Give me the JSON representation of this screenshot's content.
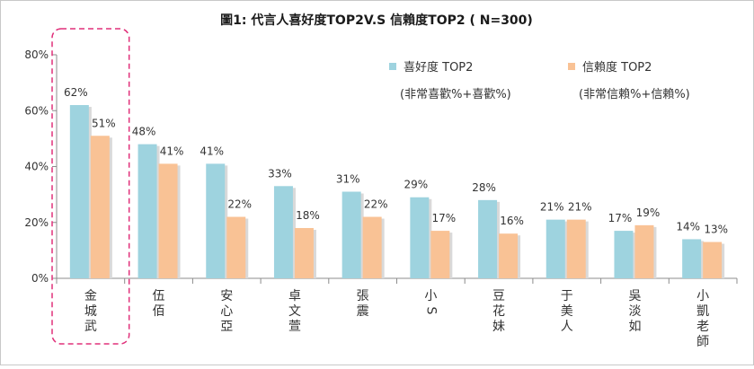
{
  "chart_data": {
    "type": "bar",
    "title": "圖1: 代言人喜好度TOP2V.S 信賴度TOP2 ( N=300)",
    "categories": [
      "金城武",
      "伍佰",
      "安心亞",
      "卓文萱",
      "張震",
      "小S",
      "豆花妹",
      "于美人",
      "吳淡如",
      "小凱老師"
    ],
    "series": [
      {
        "name": "喜好度 TOP2",
        "note": "(非常喜歡%+喜歡%)",
        "values": [
          62,
          48,
          41,
          33,
          31,
          29,
          28,
          21,
          17,
          14
        ],
        "color": "#9ED3DF"
      },
      {
        "name": "信賴度 TOP2",
        "note": "(非常信賴%+信賴%)",
        "values": [
          51,
          41,
          22,
          18,
          22,
          17,
          16,
          21,
          19,
          13
        ],
        "color": "#F9C295"
      }
    ],
    "data_labels": [
      [
        "62%",
        "51%"
      ],
      [
        "48%",
        "41%"
      ],
      [
        "41%",
        "22%"
      ],
      [
        "33%",
        "18%"
      ],
      [
        "31%",
        "22%"
      ],
      [
        "29%",
        "17%"
      ],
      [
        "28%",
        "16%"
      ],
      [
        "21%",
        "21%"
      ],
      [
        "17%",
        "19%"
      ],
      [
        "14%",
        "13%"
      ]
    ],
    "yticks": [
      "0%",
      "20%",
      "40%",
      "60%",
      "80%"
    ],
    "ylim": [
      0,
      80
    ],
    "grid": false,
    "legend": "top-right",
    "highlight": "金城武",
    "highlight_color": "#E0307A"
  }
}
